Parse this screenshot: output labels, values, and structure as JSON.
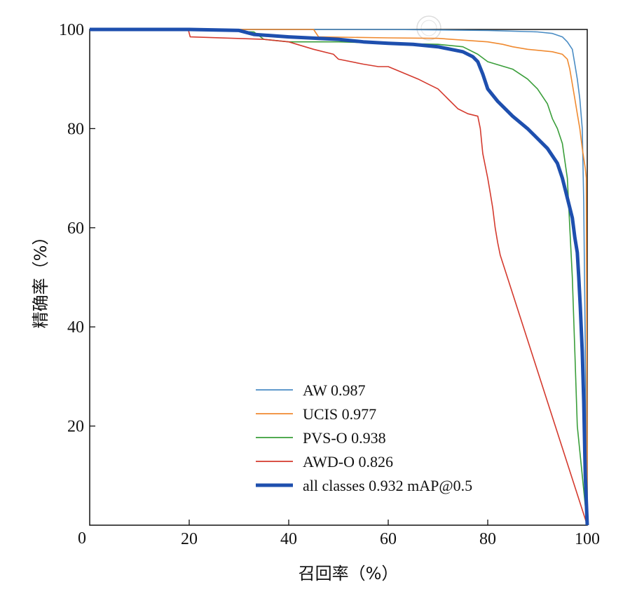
{
  "chart_data": {
    "type": "line",
    "title": "",
    "xlabel": "召回率（%）",
    "ylabel": "精确率（%）",
    "xlim": [
      0,
      100
    ],
    "ylim": [
      0,
      100
    ],
    "xticks": [
      20,
      40,
      60,
      80,
      100
    ],
    "yticks": [
      20,
      40,
      60,
      80,
      100
    ],
    "origin_label": "0",
    "grid": false,
    "legend_position": "lower-center",
    "watermark": "中国知网",
    "series": [
      {
        "name": "AW 0.987",
        "color": "#4a8cc4",
        "x": [
          0,
          20,
          40,
          60,
          80,
          90,
          93,
          95,
          96,
          97,
          97.5,
          98,
          98.5,
          99,
          99.3,
          99.6,
          100
        ],
        "y": [
          100,
          100,
          100,
          100,
          99.8,
          99.5,
          99.2,
          98.5,
          97.5,
          96,
          93,
          90,
          86,
          80,
          65,
          35,
          0
        ]
      },
      {
        "name": "UCIS 0.977",
        "color": "#f08a30",
        "x": [
          0,
          20,
          40,
          45,
          46,
          60,
          70,
          80,
          83,
          85,
          88,
          93,
          95,
          96,
          96.5,
          97,
          97.5,
          98,
          98.5,
          99,
          99.3,
          99.6,
          99.8,
          100
        ],
        "y": [
          100,
          100,
          100,
          100,
          98.5,
          98.3,
          98.2,
          97.5,
          97,
          96.5,
          96,
          95.5,
          95,
          94,
          92,
          89,
          86,
          83,
          80,
          76,
          74,
          72,
          70,
          0
        ]
      },
      {
        "name": "PVS-O 0.938",
        "color": "#3a9e3a",
        "x": [
          0,
          20,
          33,
          35,
          40,
          50,
          60,
          70,
          75,
          78,
          80,
          85,
          88,
          90,
          92,
          93,
          94,
          95,
          96,
          96.5,
          97,
          97.5,
          98,
          100
        ],
        "y": [
          100,
          100,
          99.5,
          98,
          97.5,
          97.5,
          97.2,
          97,
          96.5,
          95,
          93.5,
          92,
          90,
          88,
          85,
          82,
          80,
          77,
          70,
          60,
          50,
          35,
          20,
          0
        ]
      },
      {
        "name": "AWD-O 0.826",
        "color": "#d43a2e",
        "x": [
          0,
          19.8,
          20.2,
          35,
          40,
          45,
          49,
          50,
          55,
          58,
          60,
          66,
          68,
          70,
          72,
          74,
          76,
          78,
          78.5,
          79,
          80,
          80.5,
          81,
          81.5,
          82,
          82.5,
          100
        ],
        "y": [
          100,
          100,
          98.5,
          98,
          97.5,
          96,
          95,
          94,
          93,
          92.5,
          92.5,
          90,
          89,
          88,
          86,
          84,
          83,
          82.5,
          80,
          75,
          70,
          67,
          64,
          60,
          57,
          54.5,
          0
        ]
      },
      {
        "name": "all classes 0.932 mAP@0.5",
        "color": "#1e4fae",
        "x": [
          0,
          20,
          30,
          33,
          40,
          50,
          55,
          60,
          65,
          70,
          75,
          77,
          78,
          79,
          80,
          82,
          85,
          88,
          90,
          92,
          94,
          95,
          96,
          97,
          97.5,
          98,
          98.3,
          98.6,
          99,
          99.3,
          99.6,
          100
        ],
        "y": [
          100,
          100,
          99.8,
          99,
          98.5,
          98,
          97.5,
          97.2,
          97,
          96.5,
          95.5,
          94.5,
          93.5,
          91,
          88,
          85.5,
          82.5,
          80,
          78,
          76,
          73,
          70,
          66,
          62,
          58,
          55,
          50,
          44,
          35,
          25,
          10,
          0
        ]
      }
    ]
  }
}
